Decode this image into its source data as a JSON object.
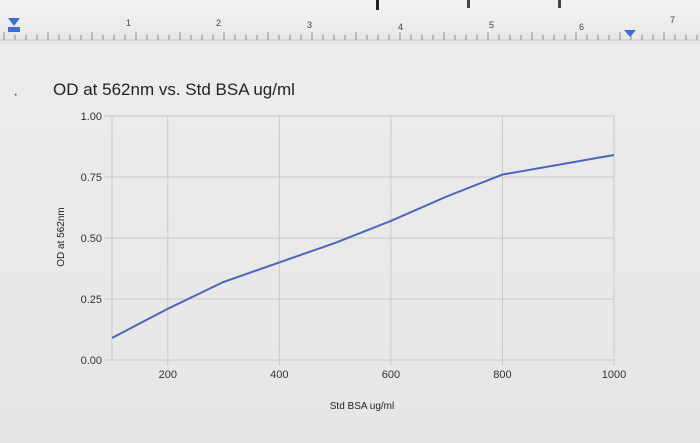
{
  "ruler": {
    "numbers": [
      "1",
      "2",
      "3",
      "4",
      "5",
      "6",
      "7"
    ],
    "marker_color": "#3b6fd6"
  },
  "bullet": "·",
  "chart_data": {
    "type": "line",
    "title": "OD at 562nm vs. Std BSA ug/ml",
    "xlabel": "Std BSA ug/ml",
    "ylabel": "OD at 562nm",
    "xlim": [
      100,
      1000
    ],
    "ylim": [
      0,
      1
    ],
    "x_ticks": [
      "200",
      "400",
      "600",
      "800",
      "1000"
    ],
    "y_ticks": [
      "0.00",
      "0.25",
      "0.50",
      "0.75",
      "1.00"
    ],
    "grid": true,
    "series": [
      {
        "color": "#4a67b8",
        "points": [
          {
            "x": 100,
            "y": 0.09
          },
          {
            "x": 200,
            "y": 0.21
          },
          {
            "x": 300,
            "y": 0.32
          },
          {
            "x": 400,
            "y": 0.4
          },
          {
            "x": 500,
            "y": 0.48
          },
          {
            "x": 600,
            "y": 0.57
          },
          {
            "x": 700,
            "y": 0.67
          },
          {
            "x": 800,
            "y": 0.76
          },
          {
            "x": 1000,
            "y": 0.84
          }
        ]
      }
    ]
  }
}
